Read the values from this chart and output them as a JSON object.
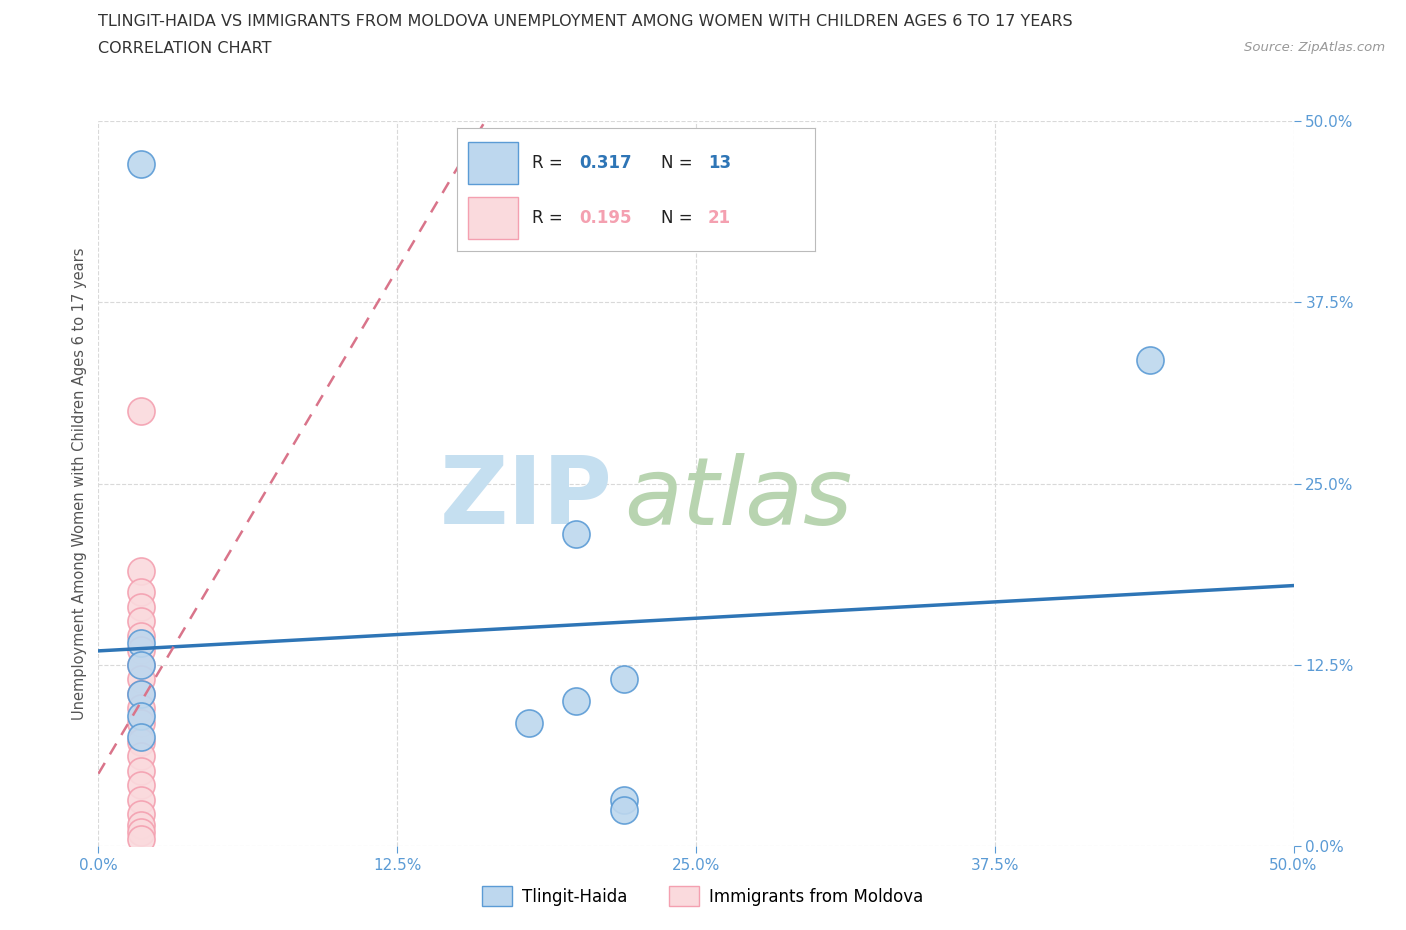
{
  "title_line1": "TLINGIT-HAIDA VS IMMIGRANTS FROM MOLDOVA UNEMPLOYMENT AMONG WOMEN WITH CHILDREN AGES 6 TO 17 YEARS",
  "title_line2": "CORRELATION CHART",
  "source": "Source: ZipAtlas.com",
  "ylabel": "Unemployment Among Women with Children Ages 6 to 17 years",
  "xlim": [
    0.0,
    0.5
  ],
  "ylim": [
    0.0,
    0.5
  ],
  "xticks": [
    0.0,
    0.125,
    0.25,
    0.375,
    0.5
  ],
  "yticks": [
    0.0,
    0.125,
    0.25,
    0.375,
    0.5
  ],
  "xticklabels": [
    "0.0%",
    "12.5%",
    "25.0%",
    "37.5%",
    "50.0%"
  ],
  "yticklabels": [
    "0.0%",
    "12.5%",
    "25.0%",
    "37.5%",
    "50.0%"
  ],
  "tick_color": "#5b9bd5",
  "tlingit_fill": "#bdd7ee",
  "moldova_fill": "#fadadd",
  "tlingit_edge": "#5b9bd5",
  "moldova_edge": "#f4a0b0",
  "tlingit_line_color": "#2e75b6",
  "moldova_line_color": "#d9748a",
  "R_tlingit": "0.317",
  "N_tlingit": "13",
  "R_moldova": "0.195",
  "N_moldova": "21",
  "tlingit_x": [
    0.018,
    0.2,
    0.22,
    0.2,
    0.18,
    0.018,
    0.018,
    0.018,
    0.018,
    0.018,
    0.22,
    0.22,
    0.44
  ],
  "tlingit_y": [
    0.47,
    0.215,
    0.115,
    0.1,
    0.085,
    0.14,
    0.125,
    0.105,
    0.09,
    0.075,
    0.032,
    0.025,
    0.335
  ],
  "moldova_x": [
    0.018,
    0.018,
    0.018,
    0.018,
    0.018,
    0.018,
    0.018,
    0.018,
    0.018,
    0.018,
    0.018,
    0.018,
    0.018,
    0.018,
    0.018,
    0.018,
    0.018,
    0.018,
    0.018,
    0.018,
    0.018
  ],
  "moldova_y": [
    0.3,
    0.19,
    0.175,
    0.165,
    0.155,
    0.145,
    0.135,
    0.125,
    0.115,
    0.105,
    0.095,
    0.085,
    0.072,
    0.062,
    0.052,
    0.042,
    0.032,
    0.022,
    0.015,
    0.01,
    0.005
  ],
  "watermark_zip_color": "#c5dff0",
  "watermark_atlas_color": "#b8d4b0",
  "background_color": "#ffffff",
  "grid_color": "#d9d9d9"
}
